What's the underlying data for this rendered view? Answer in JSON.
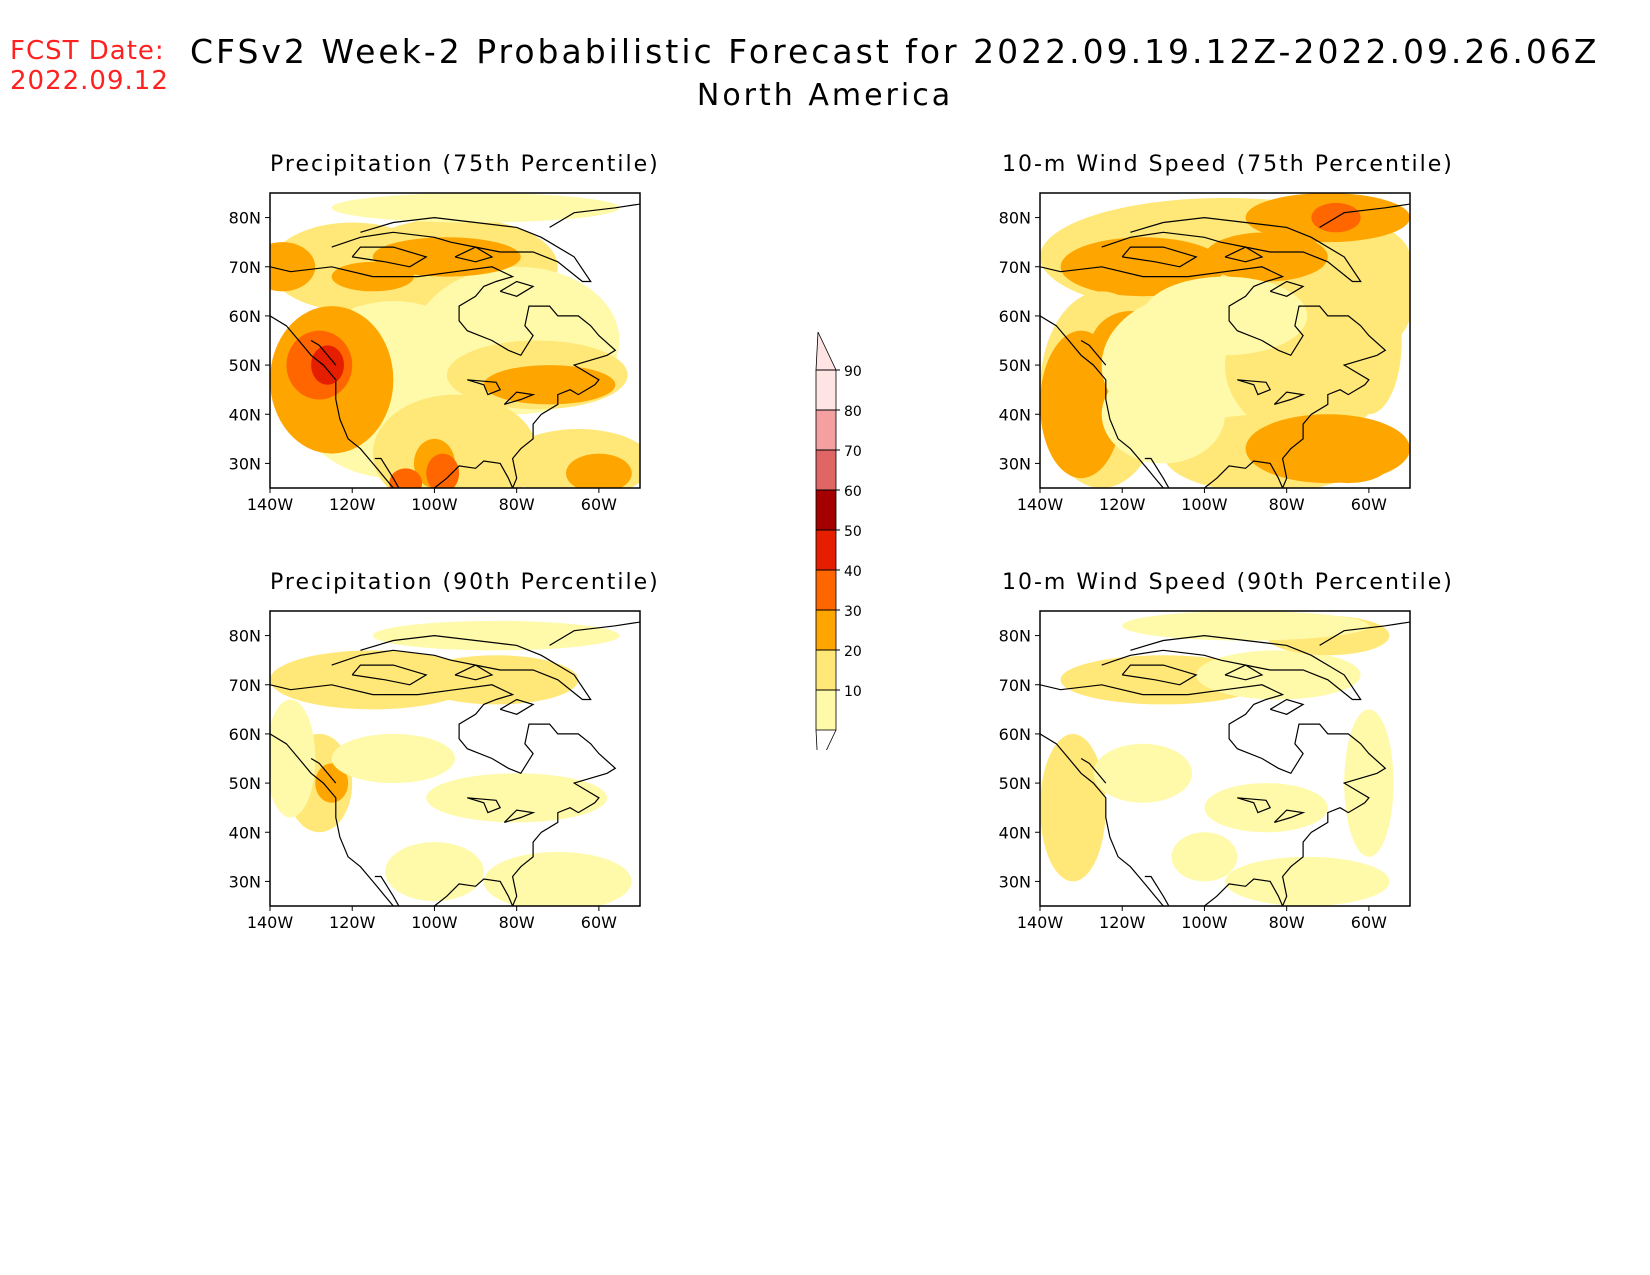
{
  "header": {
    "fcst_label": "FCST Date:",
    "fcst_date": "2022.09.12",
    "title": "CFSv2 Week-2 Probabilistic Forecast for 2022.09.19.12Z-2022.09.26.06Z",
    "subtitle": "North America"
  },
  "panels": [
    {
      "id": "precip75",
      "title": "Precipitation (75th Percentile)"
    },
    {
      "id": "wind75",
      "title": "10-m Wind Speed (75th Percentile)"
    },
    {
      "id": "precip90",
      "title": "Precipitation (90th Percentile)"
    },
    {
      "id": "wind90",
      "title": "10-m Wind Speed (90th Percentile)"
    }
  ],
  "axes": {
    "lat_labels": [
      "80N",
      "70N",
      "60N",
      "50N",
      "40N",
      "30N"
    ],
    "lon_labels": [
      "140W",
      "120W",
      "100W",
      "80W",
      "60W"
    ]
  },
  "colorbar": {
    "levels": [
      "10",
      "20",
      "30",
      "40",
      "50",
      "60",
      "70",
      "80",
      "90"
    ],
    "colors": [
      "#fffaaa",
      "#ffe878",
      "#ffa500",
      "#ff6600",
      "#e61e00",
      "#a50000",
      "#e06666",
      "#f5a0a0",
      "#ffe4e4"
    ]
  }
}
